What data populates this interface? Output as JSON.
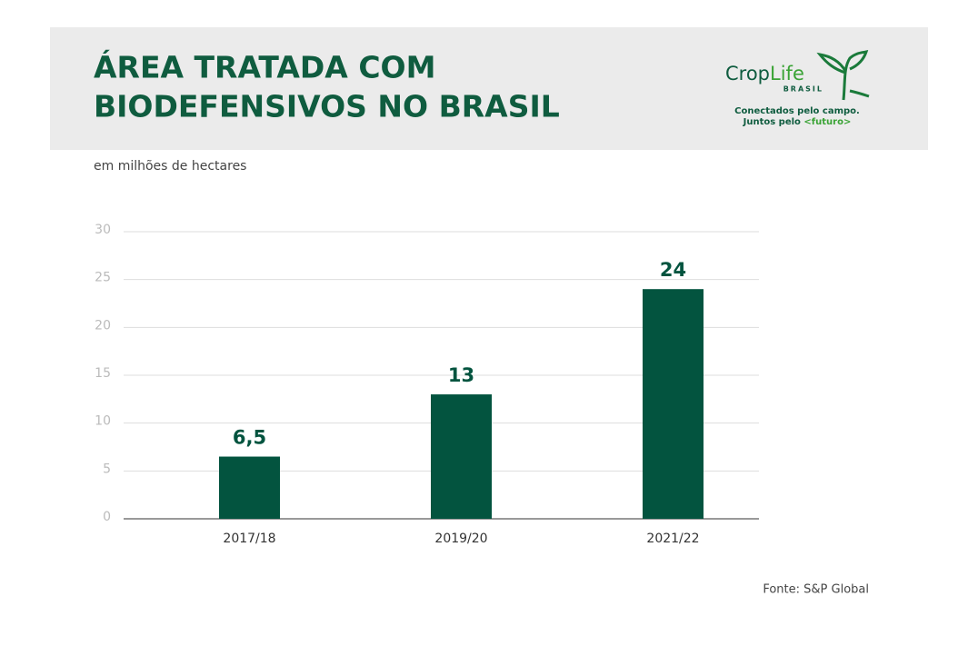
{
  "chart_data": {
    "type": "bar",
    "title": [
      "ÁREA TRATADA COM",
      "BIODEFENSIVOS NO BRASIL"
    ],
    "subtitle": "em milhões de hectares",
    "categories": [
      "2017/18",
      "2019/20",
      "2021/22"
    ],
    "values": [
      6.5,
      13,
      24
    ],
    "value_labels": [
      "6,5",
      "13",
      "24"
    ],
    "color": "#03543f",
    "ylim": [
      0,
      30
    ],
    "yticks": [
      0,
      5,
      10,
      15,
      20,
      25,
      30
    ],
    "grid": true,
    "source": "Fonte: S&P Global"
  },
  "logo": {
    "name": [
      "Crop",
      "Life"
    ],
    "country": "BRASIL",
    "tagline": [
      "Conectados pelo campo.",
      "Juntos pelo",
      "<futuro>"
    ]
  }
}
